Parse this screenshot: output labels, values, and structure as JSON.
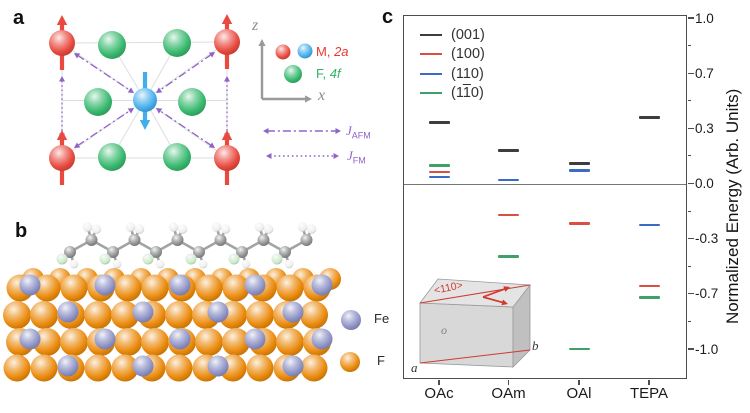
{
  "figure": {
    "panel_a_label": "a",
    "panel_b_label": "b",
    "panel_c_label": "c"
  },
  "panel_a": {
    "axis_z": "z",
    "axis_x": "x",
    "legend_m_prefix": "M, ",
    "legend_m_wyckoff": "2a",
    "legend_f_prefix": "F, ",
    "legend_f_wyckoff": "4f",
    "j_afm_base": "J",
    "j_afm_sub": "AFM",
    "j_fm_base": "J",
    "j_fm_sub": "FM"
  },
  "panel_b": {
    "legend_fe": "Fe",
    "legend_f": "F"
  },
  "chart_data": {
    "type": "scatter",
    "marker_style": "horizontal-dash",
    "title": "",
    "xlabel": "",
    "ylabel": "Normalized Energy (Arb. Units)",
    "categories": [
      "OAc",
      "OAm",
      "OAl",
      "TEPA"
    ],
    "series": [
      {
        "name": "(001)",
        "legend": {
          "pre": "(001)",
          "bar": "",
          "post": ""
        },
        "color": "#3d3d3d",
        "values": [
          0.37,
          0.2,
          0.12,
          0.4
        ]
      },
      {
        "name": "(100)",
        "legend": {
          "pre": "(100)",
          "bar": "",
          "post": ""
        },
        "color": "#d94f43",
        "values": [
          0.07,
          -0.19,
          -0.24,
          -0.62
        ]
      },
      {
        "name": "(110)",
        "legend": {
          "pre": "(110)",
          "bar": "",
          "post": ""
        },
        "color": "#3b6cc5",
        "values": [
          0.04,
          0.02,
          0.08,
          -0.25
        ]
      },
      {
        "name": "(1-10)",
        "legend": {
          "pre": "(1",
          "bar": "1",
          "post": "0)"
        },
        "color": "#3fa06a",
        "values": [
          0.11,
          -0.44,
          -1.0,
          -0.69
        ]
      }
    ],
    "yticks": [
      {
        "label": "1.0",
        "value": 1
      },
      {
        "label": "0.7",
        "value": 0.667
      },
      {
        "label": "0.3",
        "value": 0.333
      },
      {
        "label": "0.0",
        "value": 0
      },
      {
        "label": "-0.3",
        "value": -0.333
      },
      {
        "label": "-0.7",
        "value": -0.667
      },
      {
        "label": "-1.0",
        "value": -1
      }
    ],
    "yticks_minor": [
      0.833,
      0.5,
      0.167,
      -0.167,
      -0.5,
      -0.833
    ],
    "ylim": [
      1.04,
      -1.18
    ],
    "zero_line": true,
    "grid": false,
    "legend_position": "top-left"
  },
  "inset": {
    "direction_label": "<110>",
    "origin_label": "o",
    "axis_a_label": "a",
    "axis_b_label": "b"
  },
  "colors": {
    "m_red": "#e84a3f",
    "m_center_blue": "#44aeeb",
    "f_green": "#37b96e",
    "coupling_purple": "#8f63c9",
    "lattice_line": "#dedede",
    "axis_gray": "#9a9a9a",
    "fe_periwinkle": "#8e93c6",
    "f_orange": "#ea8a0c",
    "carbon_gray": "#8f8f8f",
    "hydrogen_white": "#efefef",
    "fluorine_pale_green": "#cdeacd",
    "legend_m_text": "#e8392f",
    "legend_f_text": "#2eb564",
    "inset_red": "#cf3a31",
    "frame_gray": "#4d4d4d"
  }
}
